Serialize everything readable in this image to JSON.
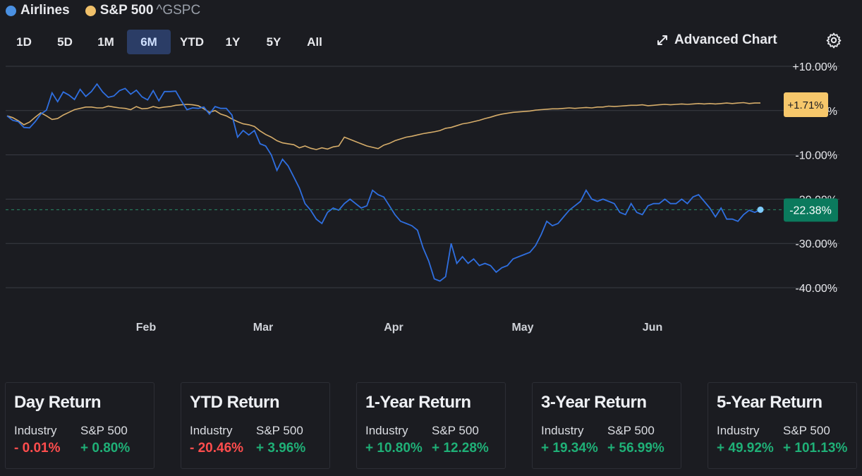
{
  "legend": {
    "series1": {
      "name": "Airlines",
      "color": "#4a90e2"
    },
    "series2": {
      "name": "S&P 500",
      "ticker": "^GSPC",
      "color": "#f0c06a"
    }
  },
  "ranges": [
    "1D",
    "5D",
    "1M",
    "6M",
    "YTD",
    "1Y",
    "5Y",
    "All"
  ],
  "active_range": "6M",
  "advanced_chart_label": "Advanced Chart",
  "chart_data": {
    "type": "line",
    "y_ticks": [
      "+10.00%",
      "0.00%",
      "-10.00%",
      "-20.00%",
      "-30.00%",
      "-40.00%"
    ],
    "y_values": [
      10,
      0,
      -10,
      -20,
      -30,
      -40
    ],
    "ylim": [
      -40,
      10
    ],
    "x_labels": [
      "Feb",
      "Mar",
      "Apr",
      "May",
      "Jun"
    ],
    "last_labels": {
      "sp500": "+1.71%",
      "airlines": "-22.38%"
    },
    "colors": {
      "airlines": "#2f6fe0",
      "sp500": "#d6ad6a",
      "sp_badge": "#f6c76b",
      "air_badge": "#0b7a5d"
    },
    "series": [
      {
        "name": "Airlines",
        "points": [
          [
            0,
            -1.2
          ],
          [
            1,
            -2.2
          ],
          [
            2,
            -2.5
          ],
          [
            3,
            -3.8
          ],
          [
            4,
            -3.9
          ],
          [
            5,
            -2.5
          ],
          [
            6,
            -0.8
          ],
          [
            7,
            0.1
          ],
          [
            8,
            4.0
          ],
          [
            9,
            2.0
          ],
          [
            10,
            4.2
          ],
          [
            11,
            3.5
          ],
          [
            12,
            2.5
          ],
          [
            13,
            4.8
          ],
          [
            14,
            3.2
          ],
          [
            15,
            4.3
          ],
          [
            16,
            6.0
          ],
          [
            17,
            4.2
          ],
          [
            18,
            3.0
          ],
          [
            19,
            3.3
          ],
          [
            20,
            4.5
          ],
          [
            21,
            5.0
          ],
          [
            22,
            3.7
          ],
          [
            23,
            4.6
          ],
          [
            24,
            3.1
          ],
          [
            25,
            2.4
          ],
          [
            26,
            4.5
          ],
          [
            27,
            2.2
          ],
          [
            28,
            4.3
          ],
          [
            29,
            4.3
          ],
          [
            30,
            4.4
          ],
          [
            31,
            2.2
          ],
          [
            32,
            0.2
          ],
          [
            33,
            0.6
          ],
          [
            34,
            0.5
          ],
          [
            35,
            0.8
          ],
          [
            36,
            -0.8
          ],
          [
            37,
            0.9
          ],
          [
            38,
            0.5
          ],
          [
            39,
            0.5
          ],
          [
            40,
            -1.0
          ],
          [
            41,
            -6.0
          ],
          [
            42,
            -4.5
          ],
          [
            43,
            -5.5
          ],
          [
            44,
            -4.5
          ],
          [
            45,
            -7.5
          ],
          [
            46,
            -8.0
          ],
          [
            47,
            -10.0
          ],
          [
            48,
            -13.5
          ],
          [
            49,
            -11.0
          ],
          [
            50,
            -12.5
          ],
          [
            51,
            -15.0
          ],
          [
            52,
            -17.5
          ],
          [
            53,
            -21.0
          ],
          [
            54,
            -22.5
          ],
          [
            55,
            -24.5
          ],
          [
            56,
            -25.5
          ],
          [
            57,
            -23.0
          ],
          [
            58,
            -22.0
          ],
          [
            59,
            -22.5
          ],
          [
            60,
            -21.0
          ],
          [
            61,
            -20.0
          ],
          [
            62,
            -21.0
          ],
          [
            63,
            -22.0
          ],
          [
            64,
            -21.5
          ],
          [
            65,
            -18.0
          ],
          [
            66,
            -19.0
          ],
          [
            67,
            -19.5
          ],
          [
            68,
            -21.5
          ],
          [
            69,
            -23.5
          ],
          [
            70,
            -25.0
          ],
          [
            71,
            -25.5
          ],
          [
            72,
            -26.0
          ],
          [
            73,
            -27.0
          ],
          [
            74,
            -31.0
          ],
          [
            75,
            -34.0
          ],
          [
            76,
            -38.0
          ],
          [
            77,
            -38.5
          ],
          [
            78,
            -37.5
          ],
          [
            79,
            -30.0
          ],
          [
            80,
            -34.5
          ],
          [
            81,
            -33.0
          ],
          [
            82,
            -34.5
          ],
          [
            83,
            -33.5
          ],
          [
            84,
            -35.0
          ],
          [
            85,
            -34.5
          ],
          [
            86,
            -35.0
          ],
          [
            87,
            -36.5
          ],
          [
            88,
            -35.5
          ],
          [
            89,
            -35.0
          ],
          [
            90,
            -33.5
          ],
          [
            91,
            -33.0
          ],
          [
            92,
            -32.5
          ],
          [
            93,
            -32.0
          ],
          [
            94,
            -30.5
          ],
          [
            95,
            -28.0
          ],
          [
            96,
            -25.0
          ],
          [
            97,
            -26.0
          ],
          [
            98,
            -25.5
          ],
          [
            99,
            -24.0
          ],
          [
            100,
            -22.5
          ],
          [
            101,
            -21.5
          ],
          [
            102,
            -20.5
          ],
          [
            103,
            -18.0
          ],
          [
            104,
            -20.0
          ],
          [
            105,
            -20.5
          ],
          [
            106,
            -20.0
          ],
          [
            107,
            -20.5
          ],
          [
            108,
            -21.0
          ],
          [
            109,
            -23.0
          ],
          [
            110,
            -23.5
          ],
          [
            111,
            -21.0
          ],
          [
            112,
            -23.0
          ],
          [
            113,
            -23.5
          ],
          [
            114,
            -21.5
          ],
          [
            115,
            -21.0
          ],
          [
            116,
            -21.0
          ],
          [
            117,
            -20.0
          ],
          [
            118,
            -21.0
          ],
          [
            119,
            -21.0
          ],
          [
            120,
            -20.0
          ],
          [
            121,
            -21.0
          ],
          [
            122,
            -19.5
          ],
          [
            123,
            -19.0
          ],
          [
            124,
            -20.5
          ],
          [
            125,
            -22.0
          ],
          [
            126,
            -24.0
          ],
          [
            127,
            -22.0
          ],
          [
            128,
            -24.5
          ],
          [
            129,
            -24.5
          ],
          [
            130,
            -25.0
          ],
          [
            131,
            -23.5
          ],
          [
            132,
            -22.5
          ],
          [
            133,
            -23.0
          ],
          [
            134,
            -22.38
          ]
        ]
      },
      {
        "name": "S&P 500",
        "points": [
          [
            0,
            -1.2
          ],
          [
            1,
            -1.6
          ],
          [
            2,
            -2.3
          ],
          [
            3,
            -3.2
          ],
          [
            4,
            -2.6
          ],
          [
            5,
            -1.5
          ],
          [
            6,
            -0.5
          ],
          [
            7,
            -1.2
          ],
          [
            8,
            -2.0
          ],
          [
            9,
            -1.8
          ],
          [
            10,
            -1.0
          ],
          [
            11,
            -0.4
          ],
          [
            12,
            0.2
          ],
          [
            13,
            0.5
          ],
          [
            14,
            0.8
          ],
          [
            15,
            0.8
          ],
          [
            16,
            0.6
          ],
          [
            17,
            0.6
          ],
          [
            18,
            1.0
          ],
          [
            19,
            0.8
          ],
          [
            20,
            0.6
          ],
          [
            21,
            0.5
          ],
          [
            22,
            0.2
          ],
          [
            23,
            0.9
          ],
          [
            24,
            0.4
          ],
          [
            25,
            0.5
          ],
          [
            26,
            0.9
          ],
          [
            27,
            0.6
          ],
          [
            28,
            0.8
          ],
          [
            29,
            0.9
          ],
          [
            30,
            1.2
          ],
          [
            31,
            1.3
          ],
          [
            32,
            1.4
          ],
          [
            33,
            1.3
          ],
          [
            34,
            1.1
          ],
          [
            35,
            0.4
          ],
          [
            36,
            -0.4
          ],
          [
            37,
            0.0
          ],
          [
            38,
            -0.8
          ],
          [
            39,
            -1.2
          ],
          [
            40,
            -1.9
          ],
          [
            41,
            -2.5
          ],
          [
            42,
            -3.0
          ],
          [
            43,
            -3.2
          ],
          [
            44,
            -3.6
          ],
          [
            45,
            -4.6
          ],
          [
            46,
            -5.4
          ],
          [
            47,
            -6.0
          ],
          [
            48,
            -6.8
          ],
          [
            49,
            -7.3
          ],
          [
            50,
            -7.5
          ],
          [
            51,
            -7.7
          ],
          [
            52,
            -8.4
          ],
          [
            53,
            -8.0
          ],
          [
            54,
            -8.5
          ],
          [
            55,
            -8.8
          ],
          [
            56,
            -8.4
          ],
          [
            57,
            -8.7
          ],
          [
            58,
            -8.2
          ],
          [
            59,
            -8.0
          ],
          [
            60,
            -6.0
          ],
          [
            61,
            -6.5
          ],
          [
            62,
            -7.0
          ],
          [
            63,
            -7.5
          ],
          [
            64,
            -8.0
          ],
          [
            65,
            -8.3
          ],
          [
            66,
            -8.6
          ],
          [
            67,
            -7.8
          ],
          [
            68,
            -7.4
          ],
          [
            69,
            -6.8
          ],
          [
            70,
            -6.4
          ],
          [
            71,
            -6.0
          ],
          [
            72,
            -5.8
          ],
          [
            73,
            -5.5
          ],
          [
            74,
            -5.2
          ],
          [
            75,
            -5.0
          ],
          [
            76,
            -4.8
          ],
          [
            77,
            -4.5
          ],
          [
            78,
            -4.0
          ],
          [
            79,
            -3.8
          ],
          [
            80,
            -3.4
          ],
          [
            81,
            -3.0
          ],
          [
            82,
            -2.8
          ],
          [
            83,
            -2.5
          ],
          [
            84,
            -2.2
          ],
          [
            85,
            -1.8
          ],
          [
            86,
            -1.5
          ],
          [
            87,
            -1.1
          ],
          [
            88,
            -0.8
          ],
          [
            89,
            -0.6
          ],
          [
            90,
            -0.4
          ],
          [
            91,
            -0.3
          ],
          [
            92,
            -0.2
          ],
          [
            93,
            -0.1
          ],
          [
            94,
            0.1
          ],
          [
            95,
            0.2
          ],
          [
            96,
            0.3
          ],
          [
            97,
            0.4
          ],
          [
            98,
            0.4
          ],
          [
            99,
            0.5
          ],
          [
            100,
            0.6
          ],
          [
            101,
            0.5
          ],
          [
            102,
            0.6
          ],
          [
            103,
            0.7
          ],
          [
            104,
            0.6
          ],
          [
            105,
            0.8
          ],
          [
            106,
            0.8
          ],
          [
            107,
            1.0
          ],
          [
            108,
            0.9
          ],
          [
            109,
            1.0
          ],
          [
            110,
            1.1
          ],
          [
            111,
            1.2
          ],
          [
            112,
            1.2
          ],
          [
            113,
            1.3
          ],
          [
            114,
            1.1
          ],
          [
            115,
            1.2
          ],
          [
            116,
            1.3
          ],
          [
            117,
            1.4
          ],
          [
            118,
            1.3
          ],
          [
            119,
            1.4
          ],
          [
            120,
            1.5
          ],
          [
            121,
            1.4
          ],
          [
            122,
            1.5
          ],
          [
            123,
            1.6
          ],
          [
            124,
            1.5
          ],
          [
            125,
            1.6
          ],
          [
            126,
            1.5
          ],
          [
            127,
            1.6
          ],
          [
            128,
            1.7
          ],
          [
            129,
            1.6
          ],
          [
            130,
            1.7
          ],
          [
            131,
            1.8
          ],
          [
            132,
            1.6
          ],
          [
            133,
            1.7
          ],
          [
            134,
            1.71
          ]
        ]
      }
    ]
  },
  "cards": [
    {
      "title": "Day Return",
      "label_industry": "Industry",
      "label_sp": "S&P 500",
      "industry": "- 0.01%",
      "sp": "+ 0.80%",
      "industry_sign": "neg",
      "sp_sign": "pos"
    },
    {
      "title": "YTD Return",
      "label_industry": "Industry",
      "label_sp": "S&P 500",
      "industry": "- 20.46%",
      "sp": "+ 3.96%",
      "industry_sign": "neg",
      "sp_sign": "pos"
    },
    {
      "title": "1-Year Return",
      "label_industry": "Industry",
      "label_sp": "S&P 500",
      "industry": "+ 10.80%",
      "sp": "+ 12.28%",
      "industry_sign": "pos",
      "sp_sign": "pos"
    },
    {
      "title": "3-Year Return",
      "label_industry": "Industry",
      "label_sp": "S&P 500",
      "industry": "+ 19.34%",
      "sp": "+ 56.99%",
      "industry_sign": "pos",
      "sp_sign": "pos"
    },
    {
      "title": "5-Year Return",
      "label_industry": "Industry",
      "label_sp": "S&P 500",
      "industry": "+ 49.92%",
      "sp": "+ 101.13%",
      "industry_sign": "pos",
      "sp_sign": "pos"
    }
  ]
}
